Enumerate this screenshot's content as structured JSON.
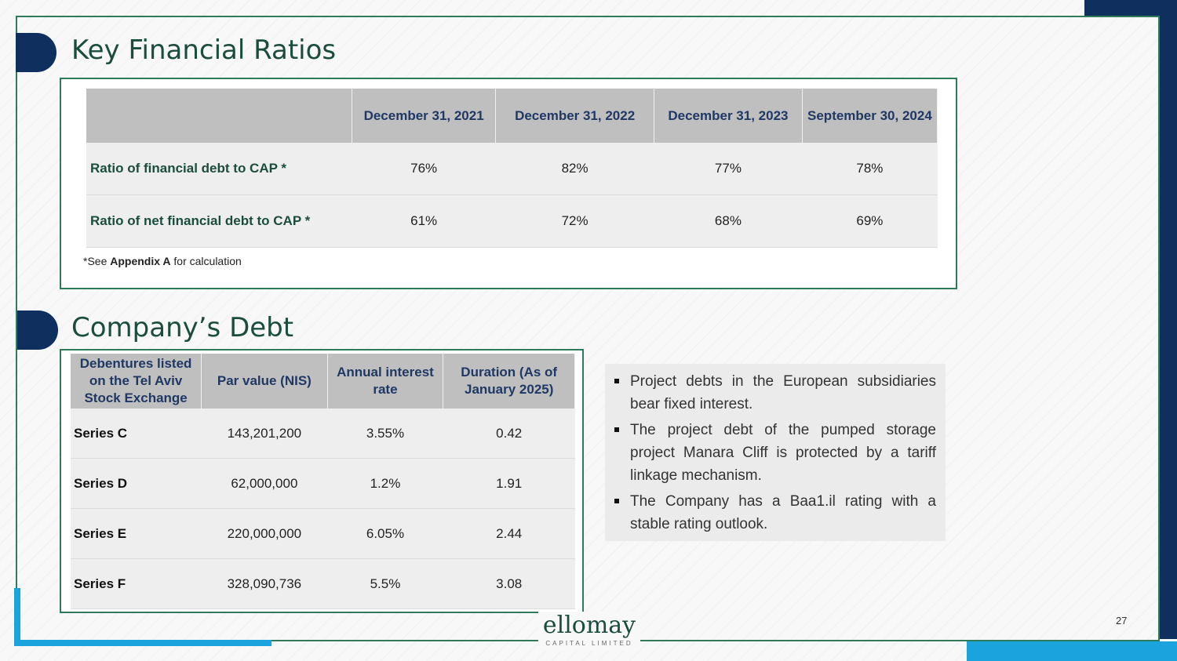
{
  "ratios_section": {
    "title": "Key Financial Ratios",
    "headers": [
      "",
      "December 31, 2021",
      "December 31, 2022",
      "December 31, 2023",
      "September 30, 2024"
    ],
    "rows": [
      {
        "label": "Ratio of financial debt to CAP *",
        "values": [
          "76%",
          "82%",
          "77%",
          "78%"
        ]
      },
      {
        "label": "Ratio of net financial debt to CAP *",
        "values": [
          "61%",
          "72%",
          "68%",
          "69%"
        ]
      }
    ],
    "footnote": {
      "prefix": "*See ",
      "bold": "Appendix A",
      "suffix": " for calculation"
    }
  },
  "debt_section": {
    "title": "Company’s Debt",
    "headers": [
      "Debentures listed on the Tel Aviv Stock Exchange",
      "Par value (NIS)",
      "Annual interest rate",
      "Duration (As of January 2025)"
    ],
    "rows": [
      {
        "label": "Series C",
        "values": [
          "143,201,200",
          "3.55%",
          "0.42"
        ]
      },
      {
        "label": "Series D",
        "values": [
          "62,000,000",
          "1.2%",
          "1.91"
        ]
      },
      {
        "label": "Series E",
        "values": [
          "220,000,000",
          "6.05%",
          "2.44"
        ]
      },
      {
        "label": "Series F",
        "values": [
          "328,090,736",
          "5.5%",
          "3.08"
        ]
      }
    ]
  },
  "bullets": [
    "Project debts in the European subsidiaries bear fixed interest.",
    "The project debt of the pumped storage project Manara Cliff is protected by a tariff linkage mechanism.",
    "The Company has a Baa1.il rating with a stable rating outlook."
  ],
  "logo": {
    "word": "ellomay",
    "sub": "CAPITAL LIMITED"
  },
  "page_number": "27",
  "colors": {
    "navy": "#0f2f5e",
    "green": "#2e7a5a",
    "cyan": "#1aa3dd",
    "header_gray": "#bfbfbf"
  }
}
